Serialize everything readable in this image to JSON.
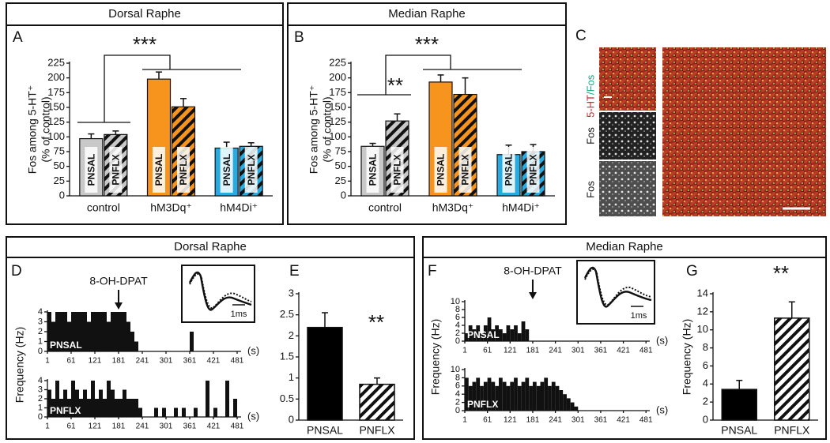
{
  "figure": {
    "headers": [
      "Dorsal Raphe",
      "Median Raphe",
      "Dorsal Raphe",
      "Median Raphe"
    ],
    "panel_letters": [
      "A",
      "B",
      "C",
      "D",
      "E",
      "F",
      "G"
    ],
    "image_labels": [
      "5-HT",
      "/Fos",
      "Fos",
      "Fos"
    ],
    "inset_scale": [
      "1ms",
      "1ms"
    ]
  },
  "chart_data": [
    {
      "type": "grouped_bar",
      "y_label": [
        "Fos among 5-HT⁺",
        "(% of control)"
      ],
      "categories": [
        "control",
        "hM3Dq⁺",
        "hM4Di⁺"
      ],
      "series": [
        {
          "name": "PNSAL",
          "colors": [
            "#c8c8c8",
            "#f7941d",
            "#29abe2"
          ],
          "hatch": false,
          "values": [
            97,
            198,
            81
          ],
          "errors": [
            8,
            12,
            10
          ]
        },
        {
          "name": "PNFLX",
          "colors": [
            "#c8c8c8",
            "#f7941d",
            "#29abe2"
          ],
          "hatch": true,
          "values": [
            104,
            151,
            84
          ],
          "errors": [
            6,
            14,
            6
          ]
        }
      ],
      "ylim": [
        0,
        225
      ],
      "yticks": [
        0,
        25,
        50,
        75,
        100,
        125,
        150,
        175,
        200,
        225
      ],
      "annotations": [
        "***"
      ]
    },
    {
      "type": "grouped_bar",
      "y_label": [
        "Fos among 5-HT⁺",
        "(% of control)"
      ],
      "categories": [
        "control",
        "hM3Dq⁺",
        "hM4Di⁺"
      ],
      "series": [
        {
          "name": "PNSAL",
          "colors": [
            "#c8c8c8",
            "#f7941d",
            "#29abe2"
          ],
          "hatch": false,
          "values": [
            84,
            193,
            70
          ],
          "errors": [
            5,
            12,
            16
          ]
        },
        {
          "name": "PNFLX",
          "colors": [
            "#c8c8c8",
            "#f7941d",
            "#29abe2"
          ],
          "hatch": true,
          "values": [
            127,
            172,
            75
          ],
          "errors": [
            12,
            28,
            12
          ]
        }
      ],
      "ylim": [
        0,
        225
      ],
      "yticks": [
        0,
        25,
        50,
        75,
        100,
        125,
        150,
        175,
        200,
        225
      ],
      "annotations": [
        "***",
        "**"
      ]
    },
    {
      "type": "histogram",
      "label": "PNSAL",
      "y_label": "Frequency (Hz)",
      "x_label": "(s)",
      "annotation": {
        "text": "8-OH-DPAT",
        "x": 181
      },
      "bins": [
        1,
        11,
        21,
        31,
        41,
        51,
        61,
        71,
        81,
        91,
        101,
        111,
        121,
        131,
        141,
        151,
        161,
        171,
        181,
        191,
        201,
        211,
        221,
        231,
        241,
        251,
        261,
        271,
        281,
        291,
        301,
        311,
        321,
        331,
        341,
        351,
        361,
        371,
        381,
        391,
        401,
        411,
        421,
        431,
        441,
        451,
        461,
        471,
        481
      ],
      "values": [
        4,
        3,
        4,
        4,
        4,
        3,
        4,
        4,
        4,
        4,
        3,
        4,
        4,
        4,
        4,
        3,
        4,
        4,
        4,
        4,
        3,
        2,
        1,
        0,
        0,
        0,
        0,
        0,
        0,
        0,
        0,
        0,
        0,
        0,
        0,
        0,
        2,
        0,
        0,
        0,
        0,
        0,
        0,
        0,
        0,
        0,
        0,
        0
      ],
      "xlim": [
        1,
        491
      ],
      "xticks": [
        1,
        61,
        121,
        181,
        241,
        301,
        361,
        421,
        481
      ],
      "ylim": [
        0,
        4
      ],
      "yticks": [
        0,
        1,
        2,
        3,
        4
      ]
    },
    {
      "type": "histogram",
      "label": "PNFLX",
      "x_label": "(s)",
      "bins": [
        1,
        11,
        21,
        31,
        41,
        51,
        61,
        71,
        81,
        91,
        101,
        111,
        121,
        131,
        141,
        151,
        161,
        171,
        181,
        191,
        201,
        211,
        221,
        231,
        241,
        251,
        261,
        271,
        281,
        291,
        301,
        311,
        321,
        331,
        341,
        351,
        361,
        371,
        381,
        391,
        401,
        411,
        421,
        431,
        441,
        451,
        461,
        471,
        481
      ],
      "values": [
        3,
        2,
        4,
        2,
        3,
        2,
        4,
        3,
        2,
        3,
        2,
        4,
        2,
        3,
        2,
        4,
        3,
        2,
        2,
        3,
        2,
        2,
        2,
        1,
        0,
        0,
        0,
        1,
        0,
        1,
        0,
        0,
        1,
        0,
        1,
        0,
        0,
        1,
        0,
        0,
        4,
        0,
        1,
        0,
        0,
        4,
        0,
        2
      ],
      "xlim": [
        1,
        491
      ],
      "xticks": [
        1,
        61,
        121,
        181,
        241,
        301,
        361,
        421,
        481
      ],
      "ylim": [
        0,
        4
      ],
      "yticks": [
        0,
        1,
        2,
        3,
        4
      ]
    },
    {
      "type": "bar",
      "categories": [
        "PNSAL",
        "PNFLX"
      ],
      "values": [
        2.2,
        0.85
      ],
      "errors": [
        0.35,
        0.15
      ],
      "colors": [
        "#000000",
        "#000000"
      ],
      "hatch": [
        false,
        true
      ],
      "ylim": [
        0,
        3
      ],
      "yticks": [
        0,
        0.5,
        1,
        1.5,
        2,
        2.5,
        3
      ],
      "annotations": [
        "**"
      ]
    },
    {
      "type": "histogram",
      "label": "PNSAL",
      "y_label": "Frequency (Hz)",
      "x_label": "(s)",
      "annotation": {
        "text": "8-OH-DPAT",
        "x": 181
      },
      "bins": [
        1,
        11,
        21,
        31,
        41,
        51,
        61,
        71,
        81,
        91,
        101,
        111,
        121,
        131,
        141,
        151,
        161,
        171,
        181,
        191,
        201,
        211,
        221,
        231,
        241,
        251,
        261,
        271,
        281,
        291,
        301,
        311,
        321,
        331,
        341,
        351,
        361,
        371,
        381,
        391,
        401,
        411,
        421,
        431,
        441,
        451,
        461,
        471,
        481
      ],
      "values": [
        2,
        4,
        3,
        4,
        2,
        4,
        6,
        3,
        4,
        3,
        2,
        4,
        3,
        4,
        2,
        5,
        3,
        0,
        0,
        0,
        0,
        0,
        0,
        0,
        0,
        0,
        0,
        0,
        0,
        0,
        0,
        0,
        0,
        0,
        0,
        0,
        0,
        0,
        0,
        0,
        0,
        0,
        0,
        0,
        0,
        0,
        0,
        0
      ],
      "xlim": [
        1,
        491
      ],
      "xticks": [
        1,
        61,
        121,
        181,
        241,
        301,
        361,
        421,
        481
      ],
      "ylim": [
        0,
        10
      ],
      "yticks": [
        0,
        2,
        4,
        6,
        8,
        10
      ]
    },
    {
      "type": "histogram",
      "label": "PNFLX",
      "x_label": "(s)",
      "bins": [
        1,
        11,
        21,
        31,
        41,
        51,
        61,
        71,
        81,
        91,
        101,
        111,
        121,
        131,
        141,
        151,
        161,
        171,
        181,
        191,
        201,
        211,
        221,
        231,
        241,
        251,
        261,
        271,
        281,
        291,
        301,
        311,
        321,
        331,
        341,
        351,
        361,
        371,
        381,
        391,
        401,
        411,
        421,
        431,
        441,
        451,
        461,
        471,
        481
      ],
      "values": [
        8,
        6,
        7,
        8,
        6,
        7,
        8,
        7,
        6,
        8,
        7,
        6,
        7,
        8,
        6,
        7,
        8,
        6,
        7,
        6,
        7,
        8,
        6,
        7,
        6,
        5,
        4,
        3,
        2,
        1,
        0,
        0,
        0,
        0,
        0,
        0,
        0,
        0,
        0,
        0,
        0,
        0,
        0,
        0,
        0,
        0,
        0,
        0
      ],
      "xlim": [
        1,
        491
      ],
      "xticks": [
        1,
        61,
        121,
        181,
        241,
        301,
        361,
        421,
        481
      ],
      "ylim": [
        0,
        10
      ],
      "yticks": [
        0,
        2,
        4,
        6,
        8,
        10
      ]
    },
    {
      "type": "bar",
      "y_label": "Frequency (Hz)",
      "categories": [
        "PNSAL",
        "PNFLX"
      ],
      "values": [
        3.4,
        11.3
      ],
      "errors": [
        1.0,
        1.8
      ],
      "colors": [
        "#000000",
        "#000000"
      ],
      "hatch": [
        false,
        true
      ],
      "ylim": [
        0,
        14
      ],
      "yticks": [
        0,
        2,
        4,
        6,
        8,
        10,
        12,
        14
      ],
      "annotations": [
        "**"
      ]
    }
  ]
}
